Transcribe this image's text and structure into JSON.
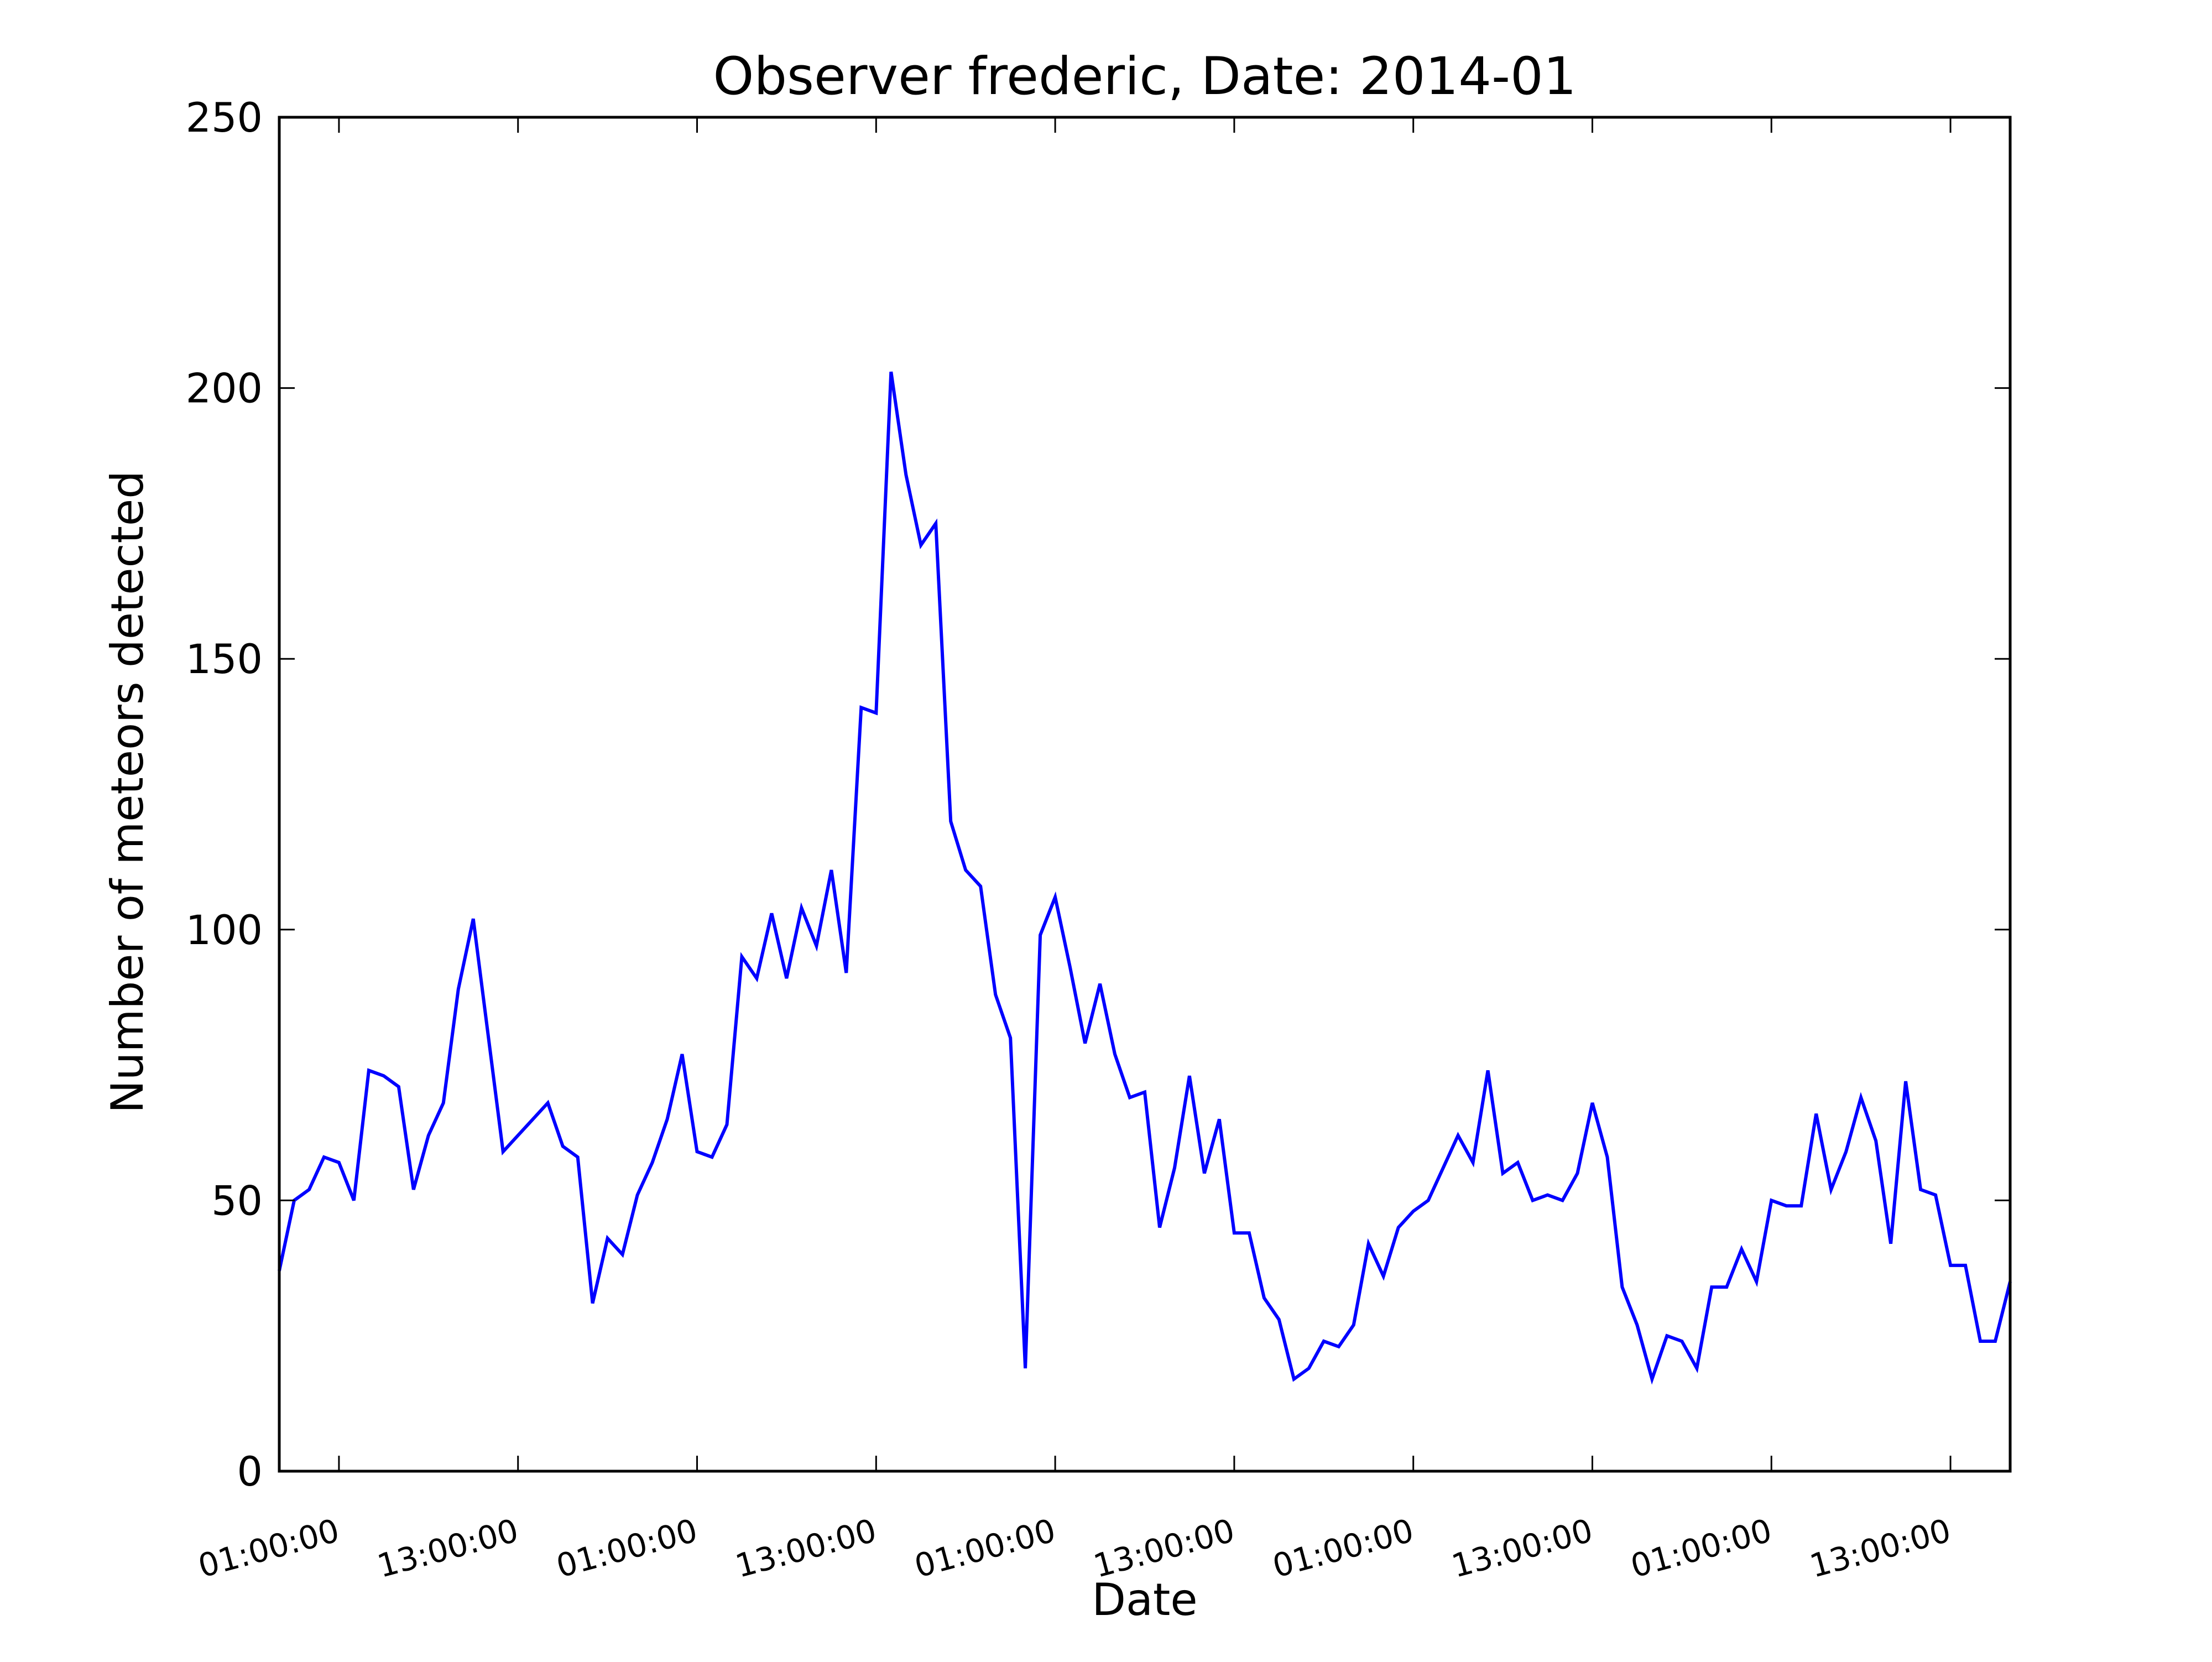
{
  "chart_data": {
    "type": "line",
    "title": "Observer frederic, Date: 2014-01",
    "xlabel": "Date",
    "ylabel": "Number of meteors detected",
    "ylim": [
      0,
      250
    ],
    "xlim": [
      0,
      116
    ],
    "grid": false,
    "line_color": "#0000ff",
    "yticks": [
      0,
      50,
      100,
      150,
      200,
      250
    ],
    "xticks": [
      {
        "x": 4,
        "label": "01:00:00"
      },
      {
        "x": 16,
        "label": "13:00:00"
      },
      {
        "x": 28,
        "label": "01:00:00"
      },
      {
        "x": 40,
        "label": "13:00:00"
      },
      {
        "x": 52,
        "label": "01:00:00"
      },
      {
        "x": 64,
        "label": "13:00:00"
      },
      {
        "x": 76,
        "label": "01:00:00"
      },
      {
        "x": 88,
        "label": "13:00:00"
      },
      {
        "x": 100,
        "label": "01:00:00"
      },
      {
        "x": 112,
        "label": "13:00:00"
      }
    ],
    "series": [
      {
        "x": [
          0,
          1,
          2,
          3,
          4,
          5,
          6,
          7,
          8,
          9,
          10,
          11,
          12,
          13,
          15,
          16,
          17,
          18,
          19,
          20,
          21,
          22,
          23,
          24,
          25,
          26,
          27,
          28,
          29,
          30,
          31,
          32,
          33,
          34,
          35,
          36,
          37,
          38,
          39,
          40,
          41,
          42,
          43,
          44,
          45,
          46,
          47,
          48,
          49,
          50,
          51,
          52,
          53,
          54,
          55,
          56,
          57,
          58,
          59,
          60,
          61,
          62,
          63,
          64,
          65,
          66,
          67,
          68,
          69,
          70,
          71,
          72,
          73,
          74,
          75,
          76,
          77,
          78,
          79,
          80,
          81,
          82,
          83,
          84,
          85,
          86,
          87,
          88,
          89,
          90,
          91,
          92,
          93,
          94,
          95,
          96,
          97,
          98,
          99,
          100,
          101,
          102,
          103,
          104,
          105,
          106,
          107,
          108,
          109,
          110,
          111,
          112,
          113,
          114,
          115,
          116
        ],
        "y": [
          37,
          50,
          52,
          58,
          57,
          50,
          74,
          73,
          71,
          52,
          62,
          68,
          89,
          102,
          59,
          62,
          65,
          68,
          60,
          58,
          31,
          43,
          40,
          51,
          57,
          65,
          77,
          59,
          58,
          64,
          95,
          91,
          103,
          91,
          104,
          97,
          111,
          92,
          141,
          140,
          203,
          184,
          171,
          175,
          120,
          111,
          108,
          88,
          80,
          19,
          99,
          106,
          93,
          79,
          90,
          77,
          69,
          70,
          45,
          56,
          73,
          55,
          65,
          44,
          44,
          32,
          28,
          17,
          19,
          24,
          23,
          27,
          42,
          36,
          45,
          48,
          50,
          56,
          62,
          57,
          74,
          55,
          57,
          50,
          51,
          50,
          55,
          68,
          58,
          34,
          27,
          17,
          25,
          24,
          19,
          34,
          34,
          41,
          35,
          50,
          49,
          49,
          66,
          52,
          59,
          69,
          61,
          42,
          72,
          52,
          51,
          38,
          38,
          24,
          24,
          35
        ]
      }
    ]
  }
}
